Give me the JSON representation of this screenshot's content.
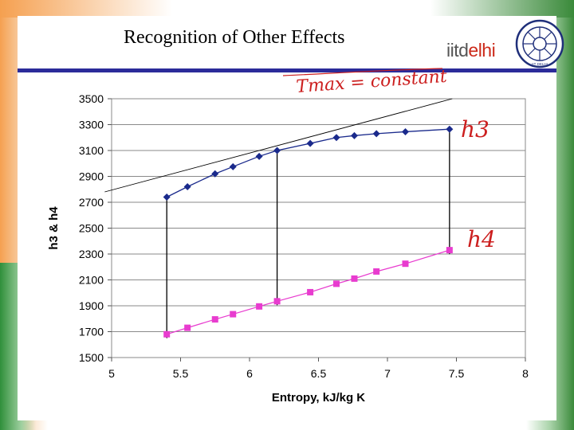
{
  "slide": {
    "title": "Recognition of Other Effects",
    "logo": {
      "prefix": "iitd",
      "suffix": "elhi",
      "seal_text": "IIT DELHI"
    }
  },
  "annotations": {
    "constant_note": "Tmax = constant",
    "h3_label": "h3",
    "h4_label": "h4"
  },
  "colors": {
    "h3_series": "#1a2a8c",
    "h4_series": "#e83ccf",
    "title_bar": "#2b2b9a",
    "ink": "#cc1f1f"
  },
  "chart_data": {
    "type": "line",
    "title": "",
    "xlabel": "Entropy, kJ/kg K",
    "ylabel": "h3 & h4",
    "xlim": [
      5,
      8
    ],
    "ylim": [
      1500,
      3500
    ],
    "xticks": [
      "5",
      "5.5",
      "6",
      "6.5",
      "7",
      "7.5",
      "8"
    ],
    "yticks": [
      "1500",
      "1700",
      "1900",
      "2100",
      "2300",
      "2500",
      "2700",
      "2900",
      "3100",
      "3300",
      "3500"
    ],
    "grid": true,
    "series": [
      {
        "name": "h3",
        "marker": "diamond",
        "x": [
          5.4,
          5.55,
          5.75,
          5.88,
          6.07,
          6.2,
          6.44,
          6.63,
          6.76,
          6.92,
          7.13,
          7.45
        ],
        "y": [
          2740,
          2820,
          2920,
          2975,
          3055,
          3100,
          3155,
          3200,
          3215,
          3230,
          3245,
          3265
        ]
      },
      {
        "name": "h4",
        "marker": "square",
        "x": [
          5.4,
          5.55,
          5.75,
          5.88,
          6.07,
          6.2,
          6.44,
          6.63,
          6.76,
          6.92,
          7.13,
          7.45
        ],
        "y": [
          1680,
          1730,
          1795,
          1835,
          1895,
          1935,
          2005,
          2070,
          2110,
          2165,
          2225,
          2330
        ]
      }
    ],
    "tangent_line": {
      "x": [
        4.95,
        7.47
      ],
      "y": [
        2780,
        3500
      ]
    },
    "drop_arrows": [
      {
        "x": 5.4,
        "from": 2740,
        "to": 1680
      },
      {
        "x": 6.2,
        "from": 3100,
        "to": 1935
      },
      {
        "x": 7.45,
        "from": 3265,
        "to": 2330
      }
    ]
  }
}
